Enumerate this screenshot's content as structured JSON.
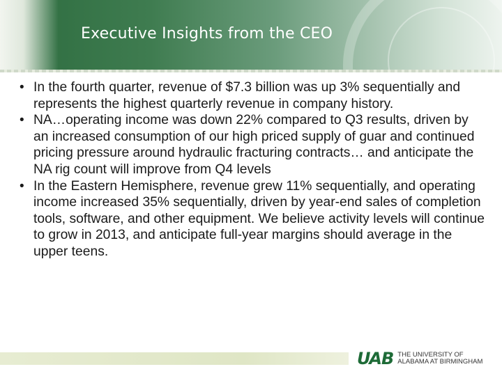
{
  "header": {
    "title": "Executive Insights from the CEO"
  },
  "bullets": [
    {
      "text": "In the fourth quarter, revenue of $7.3 billion was up 3% sequentially and represents the highest quarterly revenue in company history."
    },
    {
      "text": "NA…operating income was down 22% compared to Q3 results, driven by an increased consumption of our high priced supply of guar and continued pricing pressure around hydraulic fracturing contracts… and anticipate the NA rig count will improve from Q4 levels"
    },
    {
      "text": "In the Eastern Hemisphere, revenue grew 11% sequentially, and operating income increased 35% sequentially, driven by year-end sales of completion tools, software, and other equipment. We believe activity levels will continue to grow in 2013, and anticipate full-year margins should average in the upper teens."
    }
  ],
  "footer": {
    "logo_mark": "UAB",
    "logo_line1": "THE UNIVERSITY OF",
    "logo_line2": "ALABAMA AT BIRMINGHAM"
  },
  "colors": {
    "brand_green": "#1e6b37",
    "header_dark": "#2c6b3e"
  },
  "icons": {
    "bullet": "bullet-dot-icon"
  }
}
